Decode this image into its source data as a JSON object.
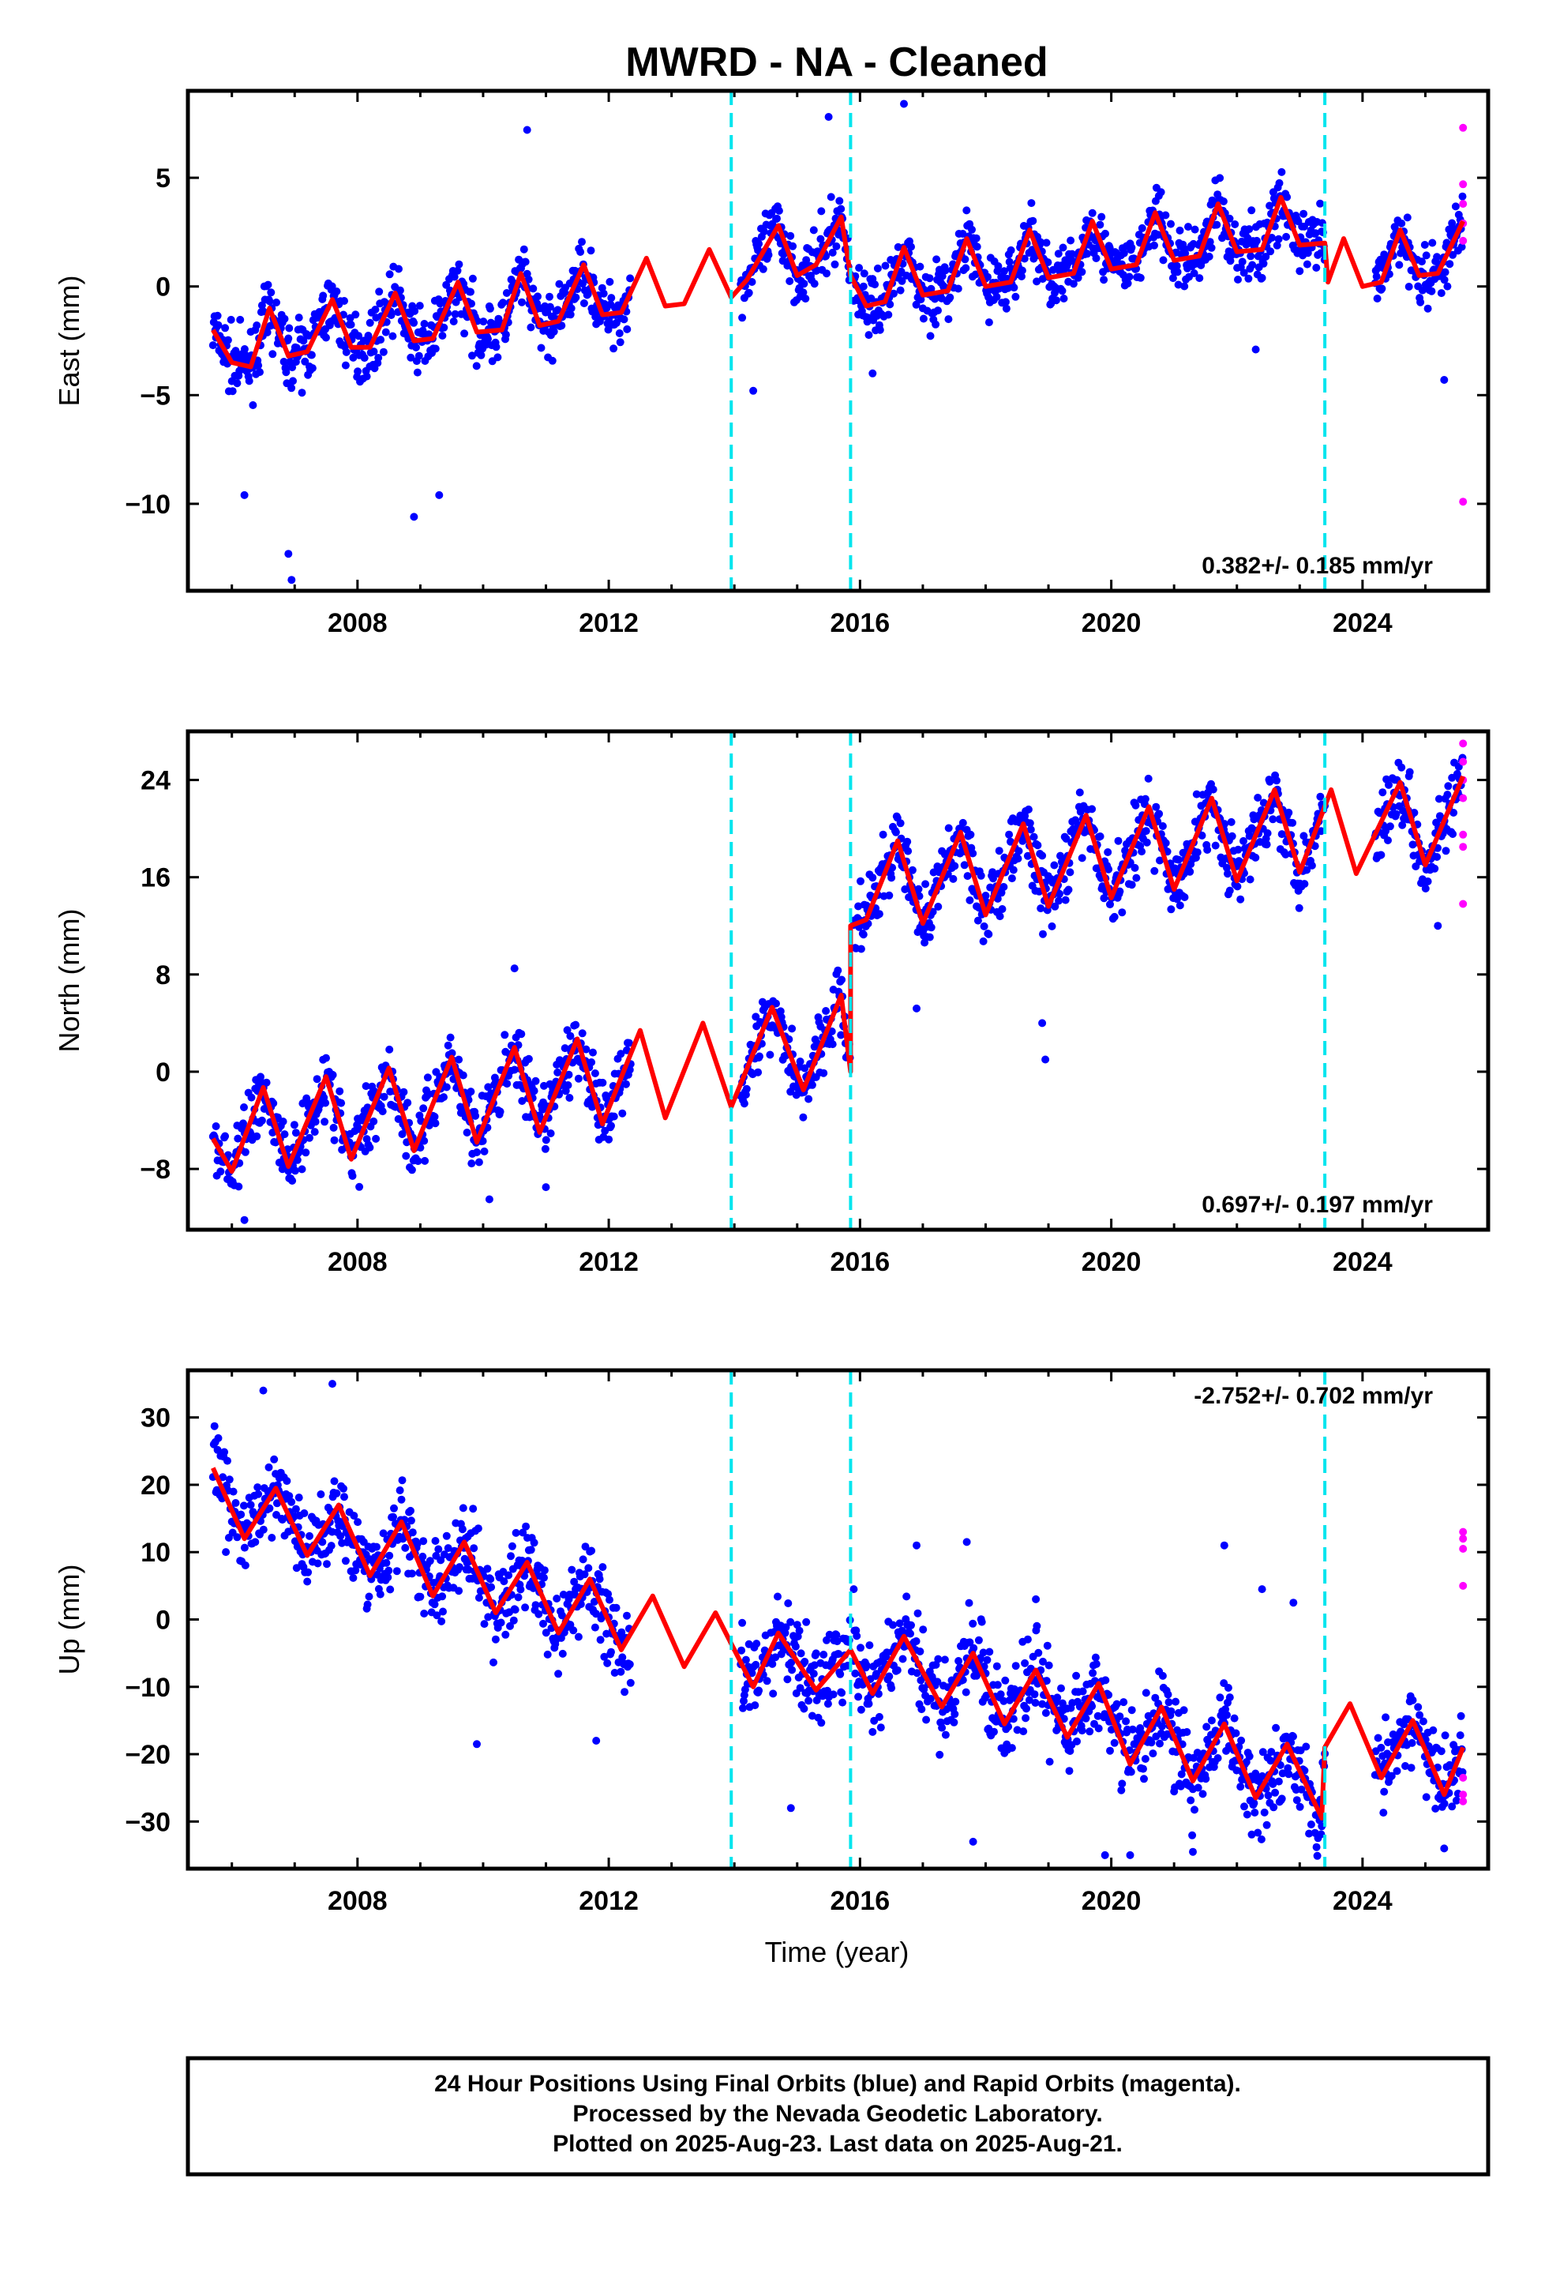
{
  "title": "MWRD  - NA - Cleaned",
  "xlabel": "Time (year)",
  "colors": {
    "final": "#0000ff",
    "rapid": "#ff00ff",
    "model": "#ff0000",
    "steps": "#00e5ee",
    "frame": "#000000"
  },
  "chart_data": [
    {
      "type": "scatter",
      "ylabel": "East (mm)",
      "ylim": [
        -14,
        9
      ],
      "xlim": [
        2005.3,
        2026.0
      ],
      "x_ticks": [
        2008,
        2012,
        2016,
        2020,
        2024
      ],
      "y_ticks": [
        -10,
        -5,
        0,
        5
      ],
      "rate_text": "0.382+/- 0.185 mm/yr",
      "rate_position": "bottom-right",
      "grid": false,
      "step_epochs": [
        2013.95,
        2015.85,
        2023.4
      ],
      "model": {
        "series_points": [
          [
            2005.7,
            -2.0
          ],
          [
            2006.0,
            -3.5
          ],
          [
            2006.3,
            -3.7
          ],
          [
            2006.6,
            -1.0
          ],
          [
            2006.9,
            -3.2
          ],
          [
            2007.2,
            -3.0
          ],
          [
            2007.6,
            -0.6
          ],
          [
            2007.9,
            -2.8
          ],
          [
            2008.2,
            -2.8
          ],
          [
            2008.6,
            -0.3
          ],
          [
            2008.9,
            -2.5
          ],
          [
            2009.2,
            -2.4
          ],
          [
            2009.6,
            0.2
          ],
          [
            2009.9,
            -2.1
          ],
          [
            2010.3,
            -2.0
          ],
          [
            2010.6,
            0.6
          ],
          [
            2010.9,
            -1.8
          ],
          [
            2011.2,
            -1.6
          ],
          [
            2011.6,
            1.0
          ],
          [
            2011.9,
            -1.3
          ],
          [
            2012.2,
            -1.2
          ],
          [
            2012.6,
            1.3
          ],
          [
            2012.9,
            -0.9
          ],
          [
            2013.2,
            -0.8
          ],
          [
            2013.6,
            1.7
          ],
          [
            2013.95,
            -0.5
          ],
          [
            2014.2,
            0.3
          ],
          [
            2014.7,
            2.8
          ],
          [
            2015.0,
            0.5
          ],
          [
            2015.3,
            1.0
          ],
          [
            2015.7,
            3.2
          ],
          [
            2015.85,
            0.5
          ],
          [
            2016.1,
            -0.9
          ],
          [
            2016.4,
            -0.7
          ],
          [
            2016.7,
            1.8
          ],
          [
            2017.0,
            -0.4
          ],
          [
            2017.4,
            -0.2
          ],
          [
            2017.7,
            2.2
          ],
          [
            2018.0,
            0.0
          ],
          [
            2018.4,
            0.2
          ],
          [
            2018.7,
            2.6
          ],
          [
            2019.0,
            0.4
          ],
          [
            2019.4,
            0.6
          ],
          [
            2019.7,
            3.0
          ],
          [
            2020.0,
            0.8
          ],
          [
            2020.4,
            1.0
          ],
          [
            2020.7,
            3.4
          ],
          [
            2021.0,
            1.2
          ],
          [
            2021.4,
            1.4
          ],
          [
            2021.7,
            3.8
          ],
          [
            2022.0,
            1.6
          ],
          [
            2022.4,
            1.7
          ],
          [
            2022.7,
            4.1
          ],
          [
            2023.0,
            1.9
          ],
          [
            2023.4,
            2.0
          ],
          [
            2023.45,
            0.2
          ],
          [
            2023.7,
            2.2
          ],
          [
            2024.0,
            0.0
          ],
          [
            2024.3,
            0.2
          ],
          [
            2024.6,
            2.6
          ],
          [
            2024.9,
            0.5
          ],
          [
            2025.2,
            0.6
          ],
          [
            2025.6,
            3.0
          ]
        ]
      },
      "final_segments": [
        [
          2005.7,
          2008.2,
          -3.0
        ],
        [
          2008.2,
          2009.8,
          -2.7
        ],
        [
          2009.8,
          2010.9,
          -0.5
        ],
        [
          2010.9,
          2012.35,
          1.2
        ],
        [
          2014.1,
          2015.85,
          1.2
        ],
        [
          2015.9,
          2017.0,
          -0.3
        ],
        [
          2017.0,
          2023.4,
          1.4
        ],
        [
          2024.2,
          2025.6,
          0.9
        ]
      ],
      "final_amplitude": 1.8,
      "final_outliers": [
        [
          2006.2,
          -9.6
        ],
        [
          2006.9,
          -12.3
        ],
        [
          2006.95,
          -13.5
        ],
        [
          2008.9,
          -10.6
        ],
        [
          2009.3,
          -9.6
        ],
        [
          2015.5,
          7.8
        ],
        [
          2016.7,
          8.4
        ],
        [
          2010.7,
          7.2
        ],
        [
          2014.3,
          -4.8
        ],
        [
          2016.2,
          -4.0
        ],
        [
          2022.3,
          -2.9
        ],
        [
          2025.3,
          -4.3
        ]
      ],
      "rapid_points": [
        [
          2025.6,
          7.3
        ],
        [
          2025.6,
          4.7
        ],
        [
          2025.6,
          3.8
        ],
        [
          2025.6,
          2.9
        ],
        [
          2025.6,
          2.1
        ],
        [
          2025.6,
          -9.9
        ]
      ]
    },
    {
      "type": "scatter",
      "ylabel": "North (mm)",
      "ylim": [
        -13,
        28
      ],
      "xlim": [
        2005.3,
        2026.0
      ],
      "x_ticks": [
        2008,
        2012,
        2016,
        2020,
        2024
      ],
      "y_ticks": [
        -8,
        0,
        8,
        16,
        24
      ],
      "rate_text": "0.697+/- 0.197 mm/yr",
      "rate_position": "bottom-right",
      "grid": false,
      "step_epochs": [
        2013.95,
        2015.85,
        2023.4
      ],
      "model": {
        "series_points": [
          [
            2005.7,
            -5.5
          ],
          [
            2006.0,
            -8.2
          ],
          [
            2006.5,
            -1.3
          ],
          [
            2006.9,
            -7.8
          ],
          [
            2007.5,
            -0.4
          ],
          [
            2007.9,
            -7.2
          ],
          [
            2008.5,
            0.3
          ],
          [
            2008.9,
            -6.5
          ],
          [
            2009.5,
            1.2
          ],
          [
            2009.9,
            -5.8
          ],
          [
            2010.5,
            2.0
          ],
          [
            2010.9,
            -5.0
          ],
          [
            2011.5,
            2.7
          ],
          [
            2011.9,
            -4.3
          ],
          [
            2012.5,
            3.4
          ],
          [
            2012.9,
            -3.8
          ],
          [
            2013.5,
            4.0
          ],
          [
            2013.95,
            -2.9
          ],
          [
            2014.6,
            5.3
          ],
          [
            2015.1,
            -1.5
          ],
          [
            2015.7,
            6.3
          ],
          [
            2015.85,
            0.0
          ],
          [
            2015.85,
            12.0
          ],
          [
            2016.1,
            12.5
          ],
          [
            2016.6,
            19.0
          ],
          [
            2017.0,
            12.2
          ],
          [
            2017.6,
            19.7
          ],
          [
            2018.0,
            12.9
          ],
          [
            2018.6,
            20.4
          ],
          [
            2019.0,
            13.6
          ],
          [
            2019.6,
            21.1
          ],
          [
            2020.0,
            14.3
          ],
          [
            2020.6,
            21.8
          ],
          [
            2021.0,
            15.0
          ],
          [
            2021.6,
            22.5
          ],
          [
            2022.0,
            15.7
          ],
          [
            2022.6,
            23.2
          ],
          [
            2023.0,
            16.4
          ],
          [
            2023.5,
            23.2
          ],
          [
            2023.9,
            16.3
          ],
          [
            2024.6,
            23.8
          ],
          [
            2025.0,
            17.0
          ],
          [
            2025.6,
            24.3
          ]
        ]
      },
      "final_segments": [
        [
          2005.7,
          2012.35,
          -3.5
        ],
        [
          2014.1,
          2015.85,
          2.0
        ],
        [
          2015.9,
          2023.4,
          17.0
        ],
        [
          2024.2,
          2025.6,
          20.0
        ]
      ],
      "final_amplitude": 3.6,
      "final_outliers": [
        [
          2010.5,
          8.5
        ],
        [
          2010.1,
          -10.5
        ],
        [
          2016.9,
          5.2
        ],
        [
          2018.9,
          4.0
        ],
        [
          2018.95,
          1.0
        ],
        [
          2025.2,
          12.0
        ],
        [
          2006.2,
          -12.2
        ],
        [
          2011.0,
          -9.5
        ]
      ],
      "rapid_points": [
        [
          2025.6,
          27.0
        ],
        [
          2025.6,
          25.5
        ],
        [
          2025.6,
          24.0
        ],
        [
          2025.6,
          22.5
        ],
        [
          2025.6,
          19.5
        ],
        [
          2025.6,
          18.5
        ],
        [
          2025.6,
          13.8
        ]
      ]
    },
    {
      "type": "scatter",
      "ylabel": "Up (mm)",
      "ylim": [
        -37,
        37
      ],
      "xlim": [
        2005.3,
        2026.0
      ],
      "x_ticks": [
        2008,
        2012,
        2016,
        2020,
        2024
      ],
      "y_ticks": [
        -30,
        -20,
        -10,
        0,
        10,
        20,
        30
      ],
      "rate_text": "-2.752+/- 0.702 mm/yr",
      "rate_position": "top-right",
      "grid": false,
      "step_epochs": [
        2013.95,
        2015.85,
        2023.4
      ],
      "model": {
        "series_points": [
          [
            2005.7,
            22.5
          ],
          [
            2006.2,
            12.0
          ],
          [
            2006.7,
            19.5
          ],
          [
            2007.2,
            9.5
          ],
          [
            2007.7,
            17.0
          ],
          [
            2008.2,
            6.5
          ],
          [
            2008.7,
            14.5
          ],
          [
            2009.2,
            3.5
          ],
          [
            2009.7,
            11.5
          ],
          [
            2010.2,
            1.0
          ],
          [
            2010.7,
            8.5
          ],
          [
            2011.2,
            -2.0
          ],
          [
            2011.7,
            6.0
          ],
          [
            2012.2,
            -4.5
          ],
          [
            2012.7,
            3.5
          ],
          [
            2013.2,
            -7.0
          ],
          [
            2013.7,
            1.0
          ],
          [
            2014.3,
            -10.0
          ],
          [
            2014.7,
            -2.0
          ],
          [
            2015.3,
            -10.5
          ],
          [
            2015.85,
            -4.5
          ],
          [
            2016.2,
            -11.0
          ],
          [
            2016.7,
            -2.5
          ],
          [
            2017.3,
            -13.0
          ],
          [
            2017.8,
            -5.0
          ],
          [
            2018.3,
            -15.5
          ],
          [
            2018.8,
            -7.5
          ],
          [
            2019.3,
            -17.5
          ],
          [
            2019.8,
            -9.5
          ],
          [
            2020.3,
            -21.5
          ],
          [
            2020.8,
            -13.0
          ],
          [
            2021.3,
            -24.0
          ],
          [
            2021.8,
            -15.5
          ],
          [
            2022.3,
            -26.5
          ],
          [
            2022.8,
            -18.5
          ],
          [
            2023.35,
            -29.5
          ],
          [
            2023.4,
            -19.0
          ],
          [
            2023.8,
            -12.5
          ],
          [
            2024.3,
            -23.5
          ],
          [
            2024.8,
            -15.0
          ],
          [
            2025.3,
            -26.0
          ],
          [
            2025.6,
            -19.0
          ]
        ]
      },
      "final_segments": [
        [
          2005.7,
          2012.35,
          8.0
        ],
        [
          2014.1,
          2015.85,
          -9.0
        ],
        [
          2015.9,
          2023.4,
          -16.0
        ],
        [
          2024.2,
          2025.6,
          -21.0
        ]
      ],
      "final_amplitude": 8.0,
      "final_outliers": [
        [
          2006.5,
          34.0
        ],
        [
          2007.6,
          35.0
        ],
        [
          2011.8,
          -18.0
        ],
        [
          2009.9,
          -18.5
        ],
        [
          2015.9,
          4.5
        ],
        [
          2016.9,
          11.0
        ],
        [
          2017.7,
          11.5
        ],
        [
          2014.9,
          -28.0
        ],
        [
          2018.8,
          3.0
        ],
        [
          2019.9,
          -35.0
        ],
        [
          2020.3,
          -35.0
        ],
        [
          2021.8,
          11.0
        ],
        [
          2021.3,
          -34.5
        ],
        [
          2022.4,
          4.5
        ],
        [
          2022.9,
          2.5
        ],
        [
          2017.8,
          -33.0
        ],
        [
          2025.3,
          -34.0
        ]
      ],
      "rapid_points": [
        [
          2025.6,
          13.0
        ],
        [
          2025.6,
          12.0
        ],
        [
          2025.6,
          10.5
        ],
        [
          2025.6,
          5.0
        ],
        [
          2025.6,
          -23.5
        ],
        [
          2025.6,
          -26.0
        ],
        [
          2025.6,
          -27.0
        ]
      ]
    }
  ],
  "footer": {
    "line1": "24 Hour Positions Using Final Orbits (blue) and Rapid Orbits (magenta).",
    "line2": "Processed by the Nevada Geodetic Laboratory.",
    "line3": "Plotted on 2025-Aug-23. Last data on 2025-Aug-21."
  }
}
